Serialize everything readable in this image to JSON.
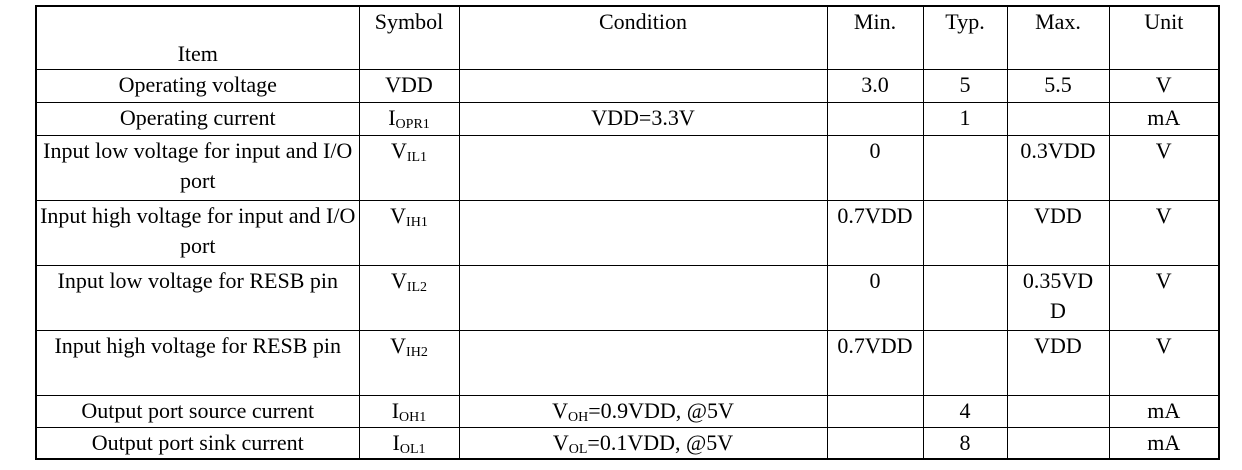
{
  "table": {
    "header": [
      "Item",
      "Symbol",
      "Condition",
      "Min.",
      "Typ.",
      "Max.",
      "Unit"
    ],
    "rows": [
      [
        "Operating voltage",
        "VDD",
        null,
        "3.0",
        "5",
        "5.5",
        "V"
      ],
      [
        "Operating current",
        {
          "main": "I",
          "sub": "OPR1"
        },
        "VDD=3.3V",
        null,
        "1",
        null,
        "mA"
      ],
      [
        "Input low voltage for input and I/O port",
        {
          "main": "V",
          "sub": "IL1"
        },
        null,
        "0",
        null,
        "0.3VDD",
        "V"
      ],
      [
        "Input high voltage for input and I/O port",
        {
          "main": "V",
          "sub": "IH1"
        },
        null,
        "0.7VDD",
        null,
        "VDD",
        "V"
      ],
      [
        "Input low voltage for RESB pin",
        {
          "main": "V",
          "sub": "IL2"
        },
        null,
        "0",
        null,
        "0.35VDD",
        "V"
      ],
      [
        "Input high voltage for RESB pin",
        {
          "main": "V",
          "sub": "IH2"
        },
        null,
        "0.7VDD",
        null,
        "VDD",
        "V"
      ],
      [
        "Output port source current",
        {
          "main": "I",
          "sub": "OH1"
        },
        {
          "main": "V",
          "sub": "OH",
          "rest": "=0.9VDD, @5V"
        },
        null,
        "4",
        null,
        "mA"
      ],
      [
        "Output port sink current",
        {
          "main": "I",
          "sub": "OL1"
        },
        {
          "main": "V",
          "sub": "OL",
          "rest": "=0.1VDD, @5V"
        },
        null,
        "8",
        null,
        "mA"
      ]
    ]
  }
}
